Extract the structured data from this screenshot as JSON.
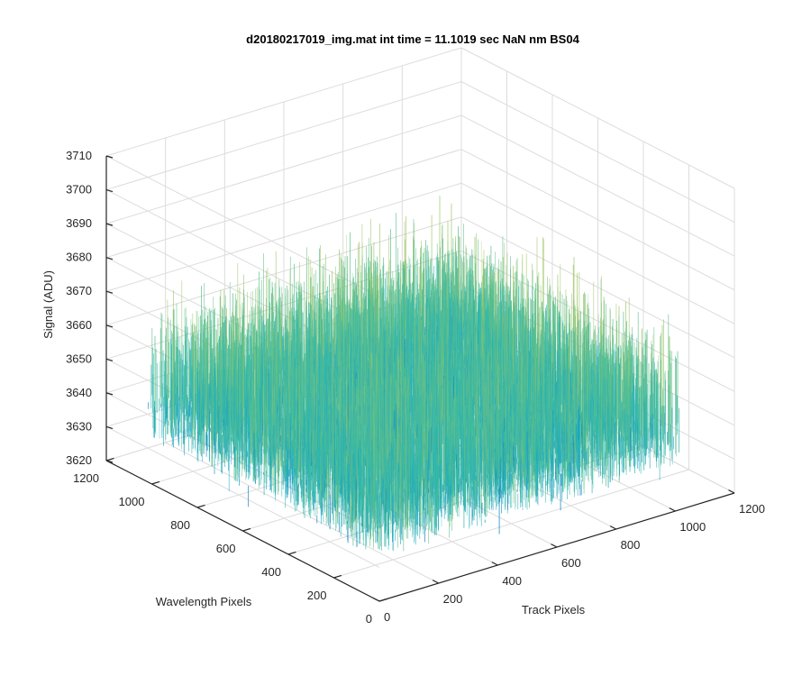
{
  "chart_data": {
    "type": "surface",
    "title": "d20180217019_img.mat int time = 11.1019 sec  NaN nm BS04",
    "xlabel": "Track Pixels",
    "ylabel": "Wavelength Pixels",
    "zlabel": "Signal (ADU)",
    "xlim": [
      0,
      1200
    ],
    "ylim": [
      0,
      1200
    ],
    "zlim": [
      3620,
      3710
    ],
    "x_ticks": [
      "0",
      "200",
      "400",
      "600",
      "800",
      "1000",
      "1200"
    ],
    "y_ticks": [
      "0",
      "200",
      "400",
      "600",
      "800",
      "1000",
      "1200"
    ],
    "z_ticks": [
      "3620",
      "3630",
      "3640",
      "3650",
      "3660",
      "3670",
      "3680",
      "3690",
      "3700",
      "3710"
    ],
    "grid": true,
    "surface": {
      "x_range": [
        0,
        1024
      ],
      "y_range": [
        0,
        1024
      ],
      "z_mean": 3655,
      "z_min": 3620,
      "z_max": 3700
    },
    "colormap": [
      "#0072bd",
      "#1aa0c8",
      "#2cb7b0",
      "#5cc08c",
      "#9ec76b",
      "#d8c84f"
    ]
  }
}
